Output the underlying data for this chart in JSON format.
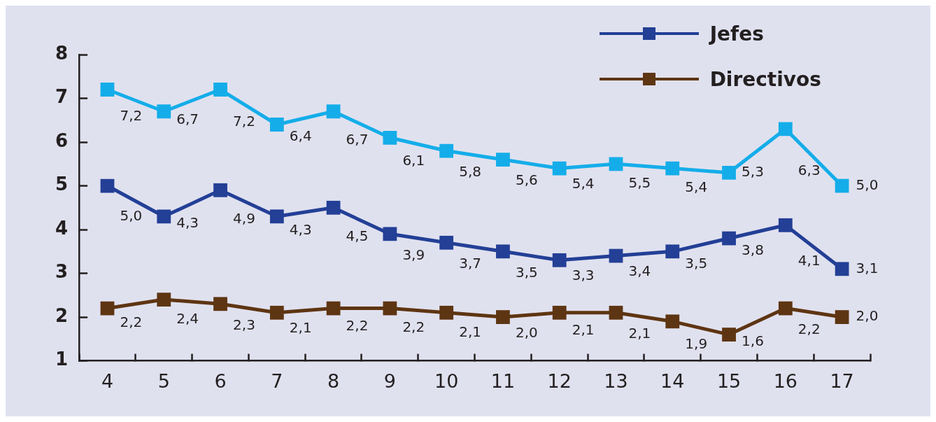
{
  "chart_data": {
    "type": "line",
    "categories": [
      "4",
      "5",
      "6",
      "7",
      "8",
      "9",
      "10",
      "11",
      "12",
      "13",
      "14",
      "15",
      "16",
      "17"
    ],
    "series": [
      {
        "color": "#14ade9",
        "values": [
          7.2,
          6.7,
          7.2,
          6.4,
          6.7,
          6.1,
          5.8,
          5.6,
          5.4,
          5.5,
          5.4,
          5.3,
          6.3,
          5.0
        ],
        "value_labels": [
          "7,2",
          "6,7",
          "7,2",
          "6,4",
          "6,7",
          "6,1",
          "5,8",
          "5,6",
          "5,4",
          "5,5",
          "5,4",
          "5,3",
          "6,3",
          "5,0"
        ]
      },
      {
        "name": "Jefes",
        "color": "#233f96",
        "values": [
          5.0,
          4.3,
          4.9,
          4.3,
          4.5,
          3.9,
          3.7,
          3.5,
          3.3,
          3.4,
          3.5,
          3.8,
          4.1,
          3.1
        ],
        "value_labels": [
          "5,0",
          "4,3",
          "4,9",
          "4,3",
          "4,5",
          "3,9",
          "3,7",
          "3,5",
          "3,3",
          "3,4",
          "3,5",
          "3,8",
          "4,1",
          "3,1"
        ]
      },
      {
        "name": "Directivos",
        "color": "#5e3512",
        "values": [
          2.2,
          2.4,
          2.3,
          2.1,
          2.2,
          2.2,
          2.1,
          2.0,
          2.1,
          2.1,
          1.9,
          1.6,
          2.2,
          2.0
        ],
        "value_labels": [
          "2,2",
          "2,4",
          "2,3",
          "2,1",
          "2,2",
          "2,2",
          "2,1",
          "2,0",
          "2,1",
          "2,1",
          "1,9",
          "1,6",
          "2,2",
          "2,0"
        ]
      }
    ],
    "ylim": [
      1,
      8
    ],
    "yticks": [
      1,
      2,
      3,
      4,
      5,
      6,
      7,
      8
    ],
    "grid": false,
    "legend": "top right",
    "marker": "square",
    "line_style": "solid"
  }
}
